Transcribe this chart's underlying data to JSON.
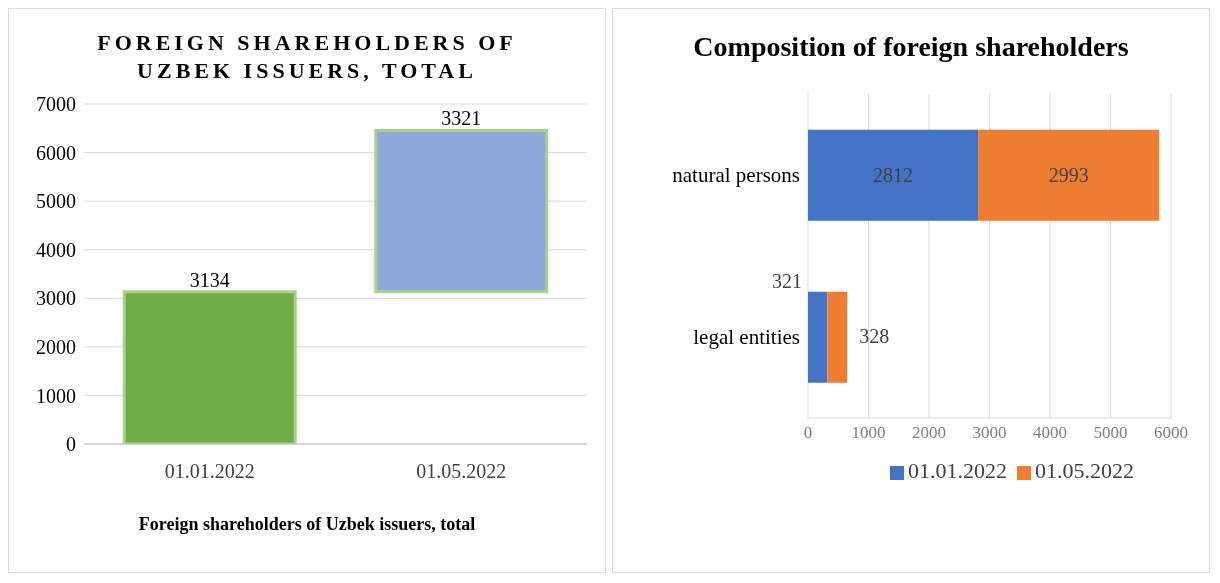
{
  "chart_data": [
    {
      "type": "bar",
      "title": "FOREIGN SHAREHOLDERS OF UZBEK ISSUERS, TOTAL",
      "xlabel": "Foreign shareholders of Uzbek issuers, total",
      "categories": [
        "01.01.2022",
        "01.05.2022"
      ],
      "values": [
        3134,
        3321
      ],
      "base": [
        0,
        3134
      ],
      "colors": [
        "#70ad47",
        "#8eaadb"
      ],
      "data_labels": true,
      "ylim": [
        0,
        7000
      ],
      "yticks": [
        0,
        1000,
        2000,
        3000,
        4000,
        5000,
        6000,
        7000
      ],
      "grid": "y",
      "legend": false
    },
    {
      "type": "bar",
      "title": "Composition of foreign shareholders",
      "orientation": "horizontal",
      "stacked": true,
      "categories": [
        "natural persons",
        "legal entities"
      ],
      "series": [
        {
          "name": "01.01.2022",
          "color": "#4472c4",
          "values": [
            2812,
            321
          ]
        },
        {
          "name": "01.05.2022",
          "color": "#ed7d31",
          "values": [
            2993,
            328
          ]
        }
      ],
      "data_labels": true,
      "xlim": [
        0,
        6000
      ],
      "xticks": [
        0,
        1000,
        2000,
        3000,
        4000,
        5000,
        6000
      ],
      "grid": "x",
      "legend": "bottom"
    }
  ]
}
